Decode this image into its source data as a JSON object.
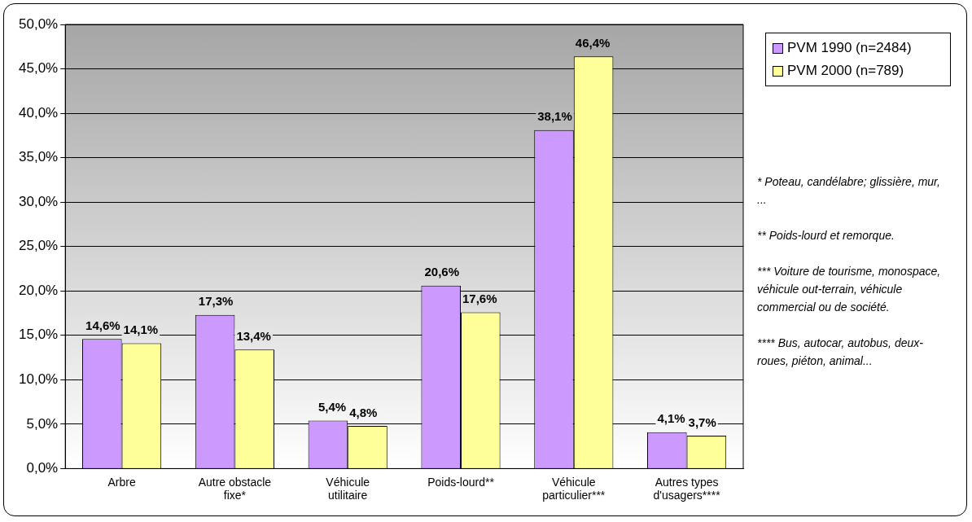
{
  "chart_data": {
    "type": "bar",
    "categories": [
      "Arbre",
      "Autre obstacle fixe*",
      "Véhicule utilitaire",
      "Poids-lourd**",
      "Véhicule particulier***",
      "Autres types d'usagers****"
    ],
    "series": [
      {
        "name": "PVM 1990 (n=2484)",
        "color": "#cc99ff",
        "values": [
          14.6,
          17.3,
          5.4,
          20.6,
          38.1,
          4.1
        ],
        "value_labels": [
          "14,6%",
          "17,3%",
          "5,4%",
          "20,6%",
          "38,1%",
          "4,1%"
        ]
      },
      {
        "name": "PVM 2000 (n=789)",
        "color": "#ffff99",
        "values": [
          14.1,
          13.4,
          4.8,
          17.6,
          46.4,
          3.7
        ],
        "value_labels": [
          "14,1%",
          "13,4%",
          "4,8%",
          "17,6%",
          "46,4%",
          "3,7%"
        ]
      }
    ],
    "ylim": [
      0,
      50
    ],
    "yticks": [
      {
        "value": 0,
        "label": "0,0%"
      },
      {
        "value": 5,
        "label": "5,0%"
      },
      {
        "value": 10,
        "label": "10,0%"
      },
      {
        "value": 15,
        "label": "15,0%"
      },
      {
        "value": 20,
        "label": "20,0%"
      },
      {
        "value": 25,
        "label": "25,0%"
      },
      {
        "value": 30,
        "label": "30,0%"
      },
      {
        "value": 35,
        "label": "35,0%"
      },
      {
        "value": 40,
        "label": "40,0%"
      },
      {
        "value": 45,
        "label": "45,0%"
      },
      {
        "value": 50,
        "label": "50,0%"
      }
    ],
    "grid": "y",
    "legend": "top right",
    "annotations": [
      "* Poteau, candélabre; glissière, mur, ...",
      "** Poids-lourd et remorque.",
      "*** Voiture de tourisme, monospace, véhicule out-terrain, véhicule commercial ou de société.",
      "**** Bus, autocar, autobus, deux-roues, piéton, animal..."
    ]
  }
}
